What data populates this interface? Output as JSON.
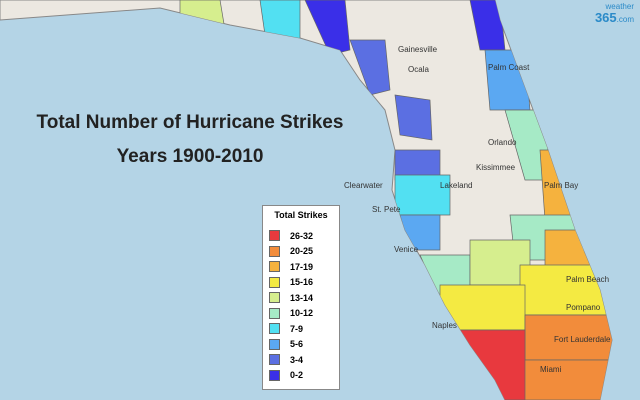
{
  "title": [
    "Total Number of Hurricane Strikes",
    "Years 1900-2010"
  ],
  "legend": {
    "title": "Total Strikes",
    "items": [
      {
        "label": "26-32",
        "color": "#e8393e"
      },
      {
        "label": "20-25",
        "color": "#f28c3b"
      },
      {
        "label": "17-19",
        "color": "#f5b23e"
      },
      {
        "label": "15-16",
        "color": "#f4ea42"
      },
      {
        "label": "13-14",
        "color": "#d6ee8e"
      },
      {
        "label": "10-12",
        "color": "#a6eac6"
      },
      {
        "label": "7-9",
        "color": "#52e0f2"
      },
      {
        "label": "5-6",
        "color": "#5ba8f2"
      },
      {
        "label": "3-4",
        "color": "#5b6fe2"
      },
      {
        "label": "0-2",
        "color": "#3a2fe8"
      }
    ]
  },
  "cities": [
    "Gainesville",
    "Ocala",
    "Palm Coast",
    "Orlando",
    "Kissimmee",
    "Clearwater",
    "Lakeland",
    "St. Pete",
    "Venice",
    "Palm Bay",
    "Palm Beach",
    "Pompano",
    "Naples",
    "Fort Lauderdale",
    "Miami"
  ],
  "logo": {
    "top": "weather",
    "main": "365",
    "suffix": ".com"
  }
}
